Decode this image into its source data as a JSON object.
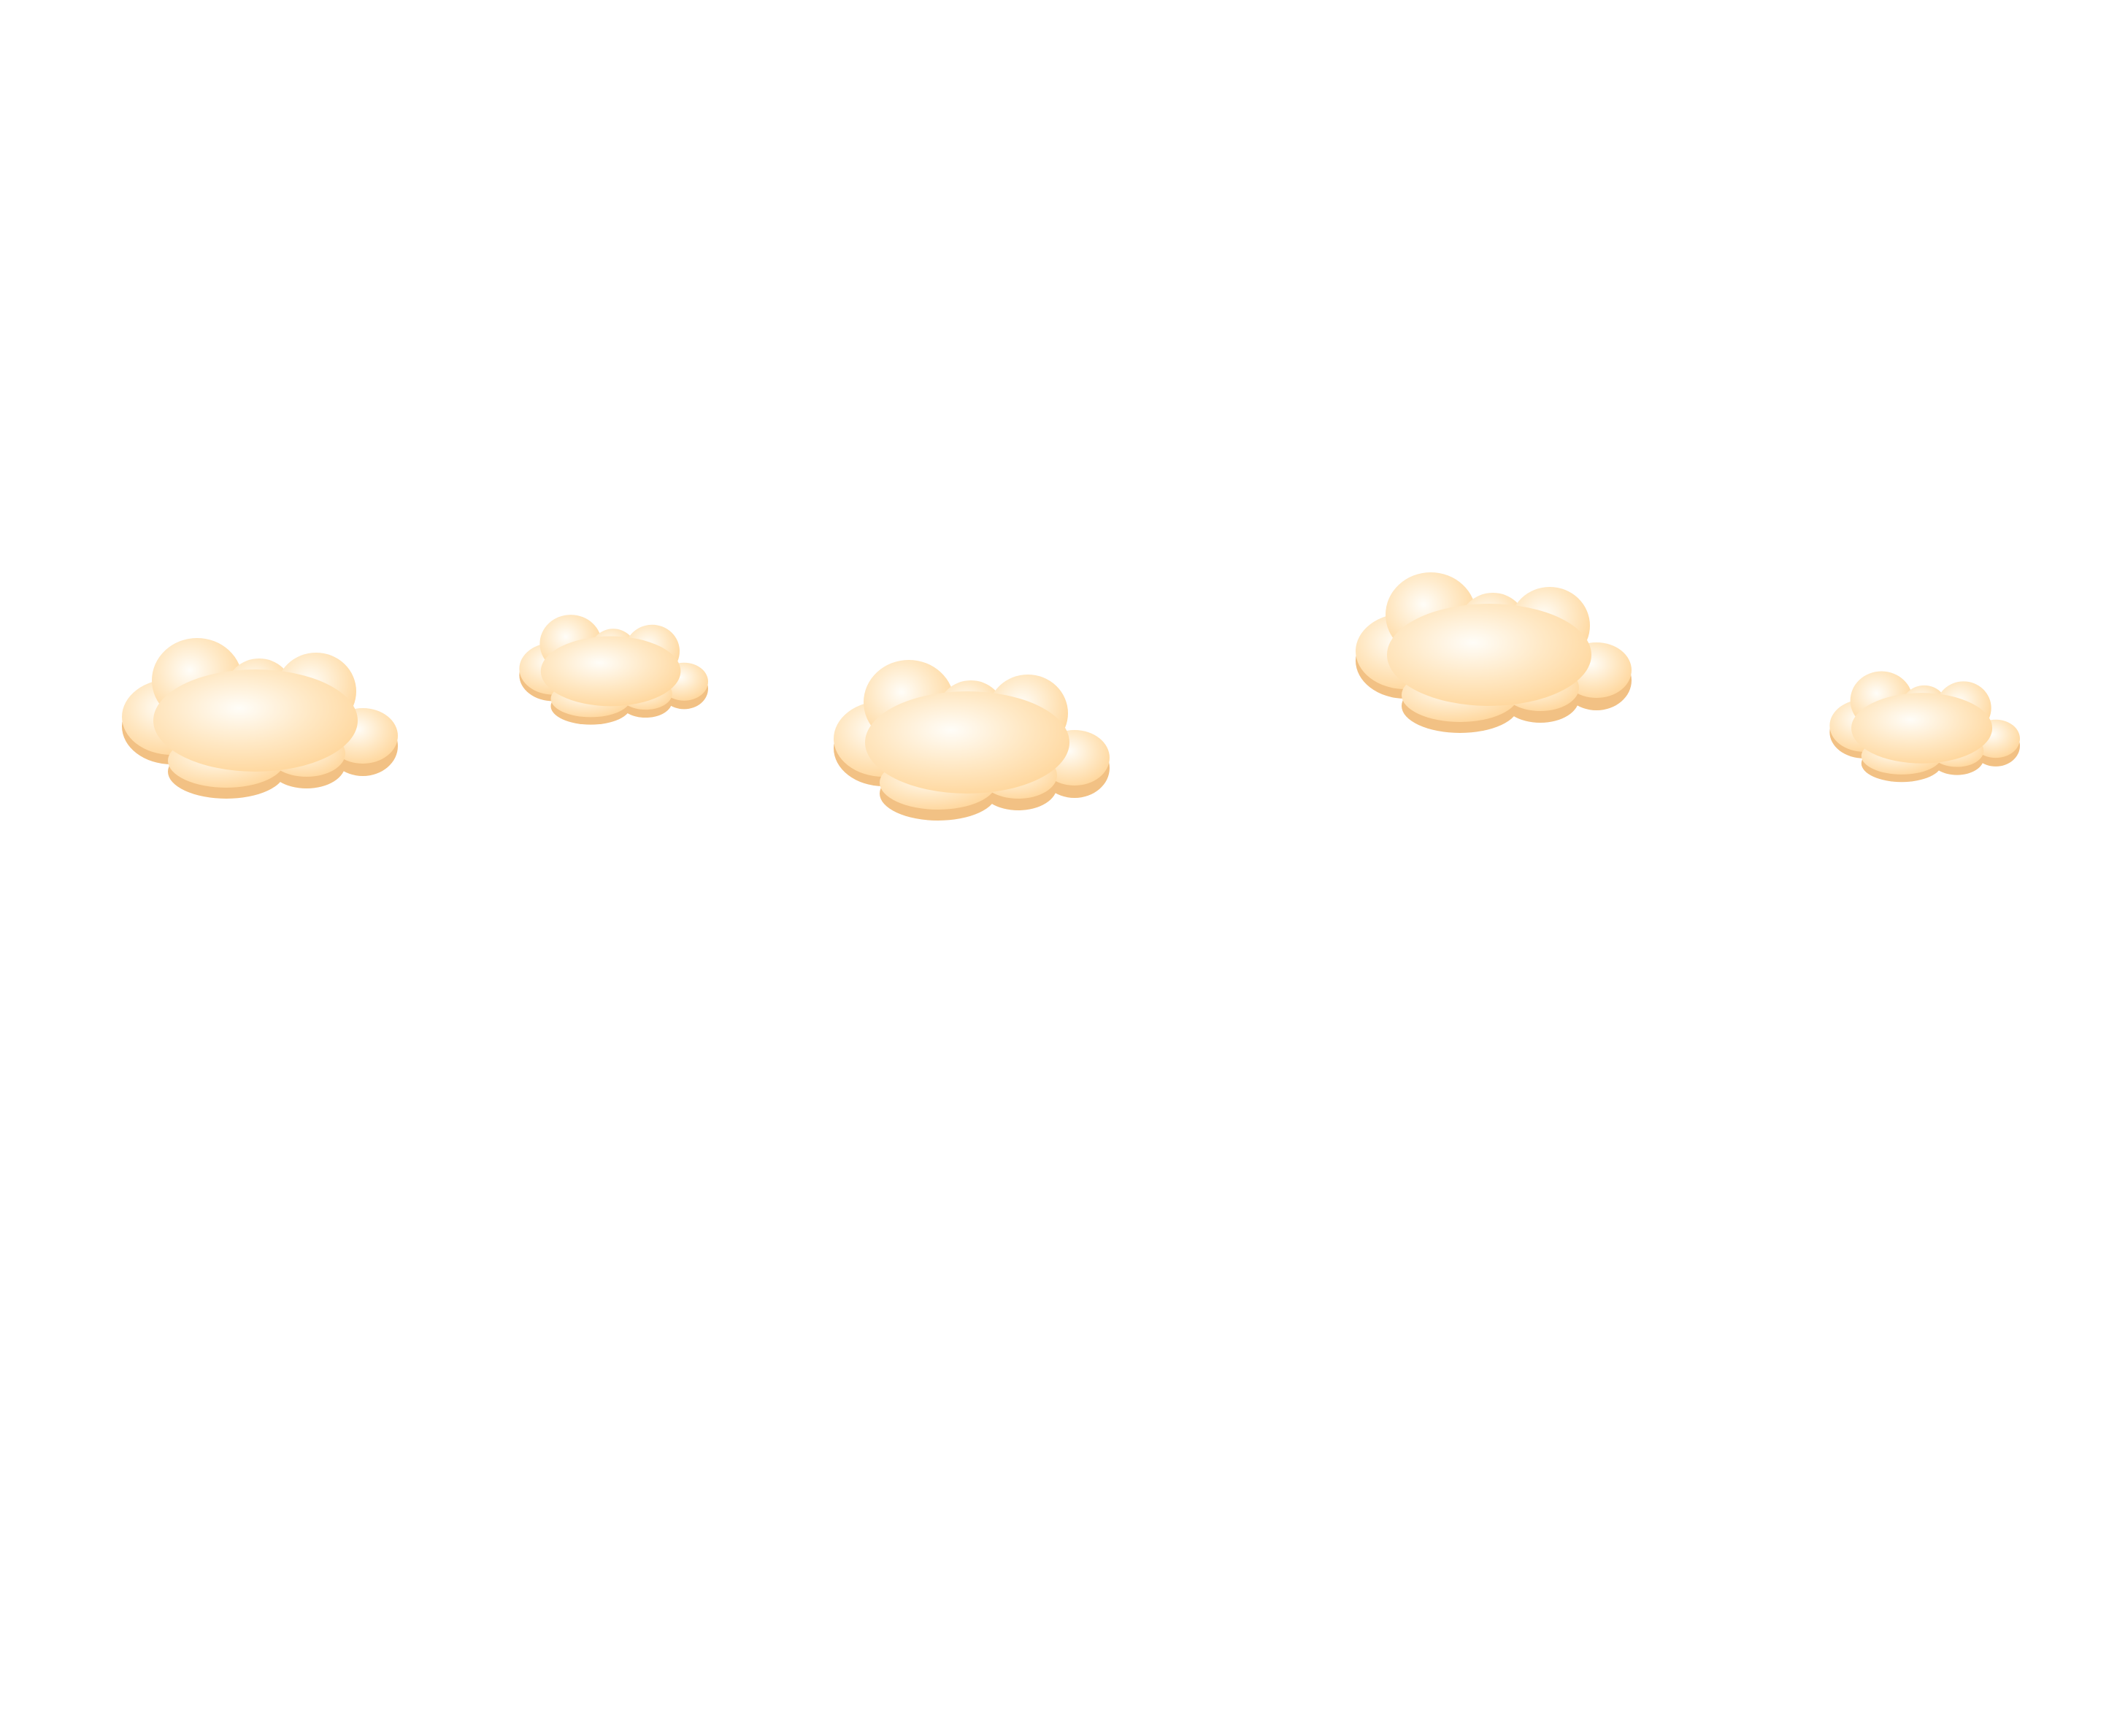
{
  "scene": {
    "background_color": "#ffffff",
    "cloud_count": 5,
    "palette": {
      "highlight": "#fffdf8",
      "body": "#ffe8c4",
      "rim": "#ffd79d",
      "shadow": "#f2c184"
    },
    "clouds": [
      {
        "name": "cloud-1",
        "icon": "cloud-icon",
        "size": "large"
      },
      {
        "name": "cloud-2",
        "icon": "cloud-icon",
        "size": "small"
      },
      {
        "name": "cloud-3",
        "icon": "cloud-icon",
        "size": "large"
      },
      {
        "name": "cloud-4",
        "icon": "cloud-icon",
        "size": "large"
      },
      {
        "name": "cloud-5",
        "icon": "cloud-icon",
        "size": "small"
      }
    ]
  }
}
